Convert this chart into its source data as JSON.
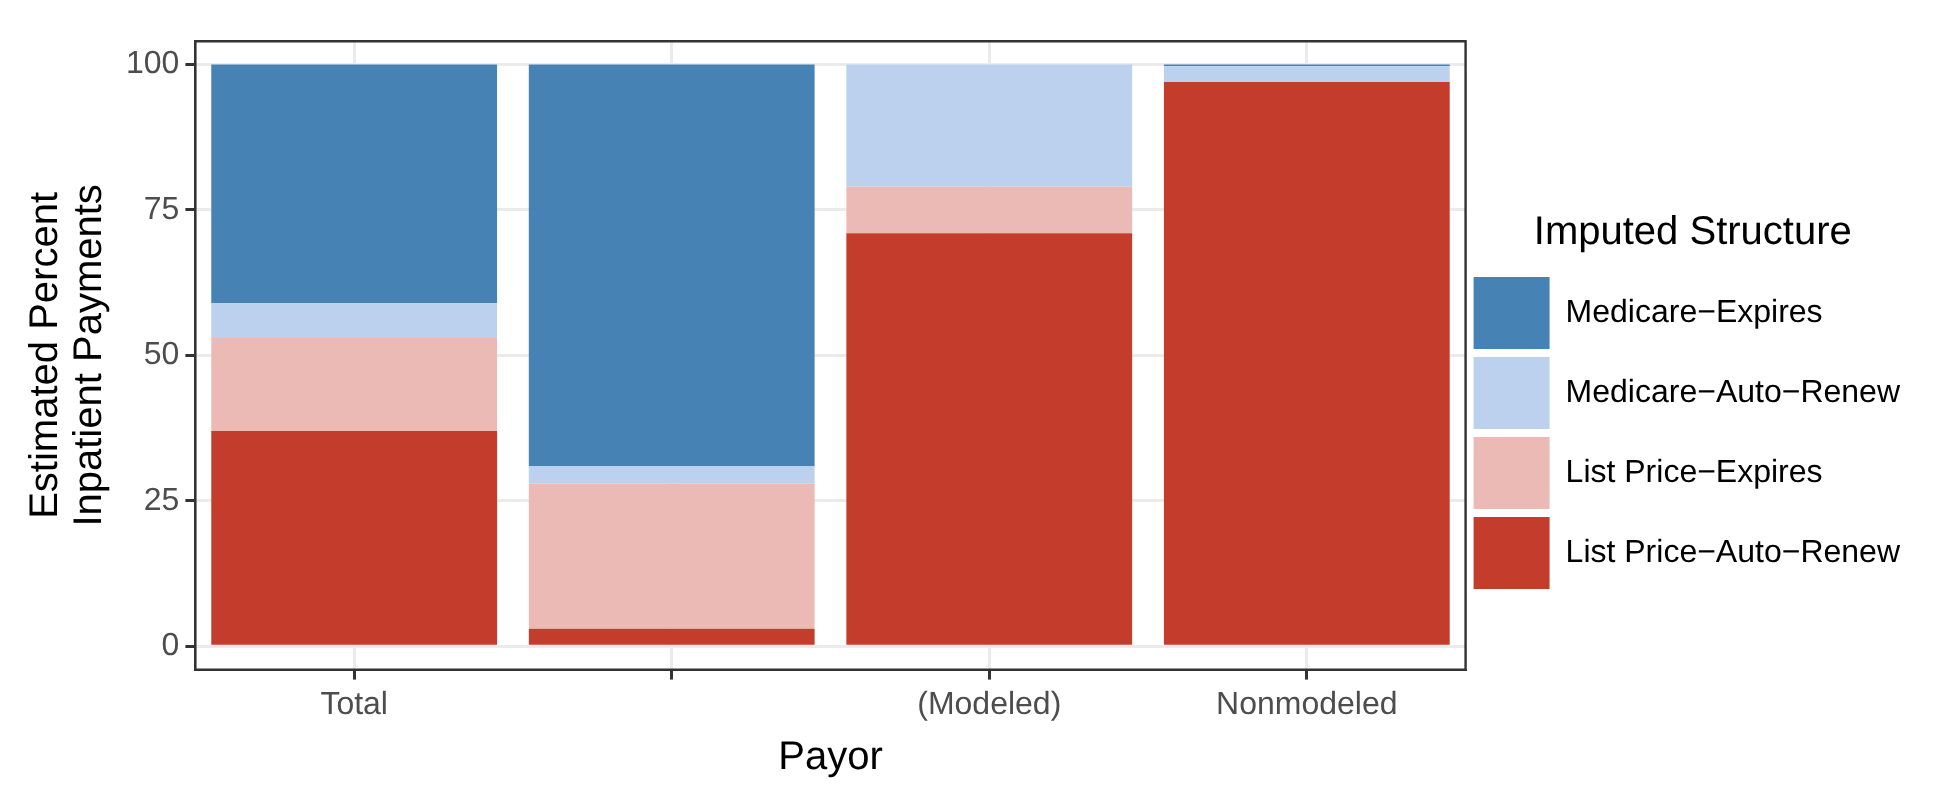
{
  "chart_data": {
    "type": "bar",
    "stacked": true,
    "xlabel": "Payor",
    "ylabel": "Estimated Percent\nInpatient Payments",
    "legend_title": "Imputed Structure",
    "legend": "right",
    "grid": true,
    "categories": [
      "Total",
      null,
      "(Modeled)",
      "Nonmodeled"
    ],
    "ylim": [
      -4,
      104
    ],
    "yticks": [
      0,
      25,
      50,
      75,
      100
    ],
    "series": [
      {
        "name": "List Price−Auto−Renew",
        "color": "#c43c2c",
        "values": [
          37,
          3,
          71,
          97
        ]
      },
      {
        "name": "List Price−Expires",
        "color": "#ecbab4",
        "values": [
          16,
          25,
          8,
          0
        ]
      },
      {
        "name": "Medicare−Auto−Renew",
        "color": "#bcd1ee",
        "values": [
          6,
          3,
          21,
          2.7
        ]
      },
      {
        "name": "Medicare−Expires",
        "color": "#4682b4",
        "values": [
          41,
          69,
          0,
          0.3
        ]
      }
    ]
  }
}
